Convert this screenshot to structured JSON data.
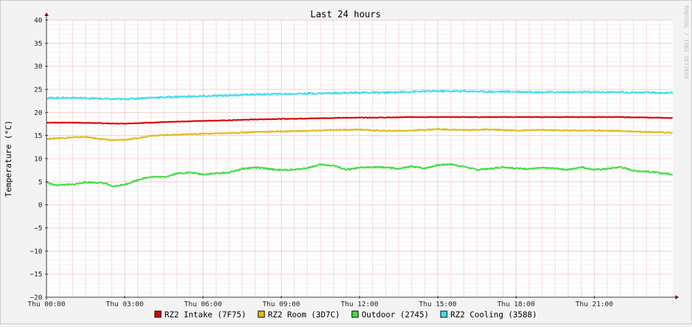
{
  "chart_data": {
    "type": "line",
    "title": "Last 24 hours",
    "ylabel": "Temperature (°C)",
    "xlabel": "",
    "watermark": "RRDTOOL / TOBI OETIKER",
    "ylim": [
      -20,
      40
    ],
    "yticks": [
      40,
      35,
      30,
      25,
      20,
      15,
      10,
      5,
      0,
      -5,
      -10,
      -15,
      -20
    ],
    "ytick_labels": [
      "40",
      "35",
      "30",
      "25",
      "20",
      "15",
      "10",
      "5",
      "0",
      "−5",
      "−10",
      "−15",
      "−20"
    ],
    "xlim_hours": [
      0,
      24
    ],
    "xticks": [
      {
        "label": "Thu 00:00",
        "hour": 0
      },
      {
        "label": "Thu 03:00",
        "hour": 3
      },
      {
        "label": "Thu 06:00",
        "hour": 6
      },
      {
        "label": "Thu 09:00",
        "hour": 9
      },
      {
        "label": "Thu 12:00",
        "hour": 12
      },
      {
        "label": "Thu 15:00",
        "hour": 15
      },
      {
        "label": "Thu 18:00",
        "hour": 18
      },
      {
        "label": "Thu 21:00",
        "hour": 21
      }
    ],
    "grid": true,
    "legend_position": "bottom",
    "x_unit": "hour",
    "series": [
      {
        "name": "RZ2 Intake (7F75)",
        "color": "#dd0000",
        "x": [
          0,
          1,
          2,
          2.5,
          3,
          4,
          5,
          6,
          7,
          8,
          9,
          10,
          11,
          12,
          13,
          14,
          15,
          16,
          17,
          18,
          19,
          20,
          21,
          22,
          23,
          24
        ],
        "y": [
          17.8,
          17.8,
          17.7,
          17.6,
          17.6,
          17.8,
          18.0,
          18.2,
          18.3,
          18.5,
          18.6,
          18.7,
          18.8,
          18.9,
          18.9,
          19.0,
          19.0,
          19.0,
          19.0,
          19.0,
          19.0,
          19.0,
          19.0,
          19.0,
          18.9,
          18.8
        ]
      },
      {
        "name": "RZ2 Room (3D7C)",
        "color": "#e6b820",
        "x": [
          0,
          1,
          1.5,
          2,
          2.5,
          3,
          3.5,
          4,
          5,
          6,
          7,
          8,
          9,
          10,
          11,
          12,
          13,
          14,
          15,
          16,
          17,
          18,
          19,
          20,
          21,
          22,
          23,
          24
        ],
        "y": [
          14.3,
          14.6,
          14.7,
          14.3,
          14.0,
          14.1,
          14.4,
          15.0,
          15.2,
          15.4,
          15.5,
          15.8,
          15.9,
          16.0,
          16.2,
          16.3,
          16.0,
          16.1,
          16.4,
          16.2,
          16.3,
          16.1,
          16.2,
          16.1,
          16.1,
          16.0,
          15.8,
          15.6
        ]
      },
      {
        "name": "Outdoor (2745)",
        "color": "#44dd44",
        "x": [
          0,
          0.3,
          1,
          1.5,
          2,
          2.3,
          2.5,
          2.8,
          3,
          3.5,
          4,
          4.5,
          5,
          5.5,
          6,
          6.5,
          7,
          7.5,
          8,
          8.5,
          9,
          9.5,
          10,
          10.5,
          11,
          11.5,
          12,
          12.5,
          13,
          13.5,
          14,
          14.5,
          15,
          15.5,
          16,
          16.5,
          17,
          17.5,
          18,
          18.5,
          19,
          19.5,
          20,
          20.5,
          21,
          21.5,
          22,
          22.5,
          23,
          23.5,
          24
        ],
        "y": [
          4.9,
          4.3,
          4.4,
          4.9,
          4.8,
          4.6,
          3.9,
          4.2,
          4.4,
          5.4,
          6.1,
          6.0,
          6.8,
          7.0,
          6.6,
          6.8,
          7.0,
          7.8,
          8.1,
          7.8,
          7.5,
          7.6,
          8.0,
          8.7,
          8.5,
          7.6,
          8.0,
          8.2,
          8.1,
          7.8,
          8.3,
          7.9,
          8.6,
          8.8,
          8.3,
          7.6,
          7.8,
          8.2,
          7.9,
          7.8,
          8.0,
          7.9,
          7.6,
          8.2,
          7.6,
          7.8,
          8.2,
          7.4,
          7.2,
          6.9,
          6.6
        ]
      },
      {
        "name": "RZ2 Cooling (3588)",
        "color": "#44ddee",
        "x": [
          0,
          1,
          2,
          2.5,
          3,
          4,
          5,
          6,
          7,
          8,
          9,
          10,
          11,
          12,
          13,
          14,
          15,
          16,
          17,
          18,
          19,
          20,
          21,
          22,
          23,
          24
        ],
        "y": [
          23.1,
          23.2,
          23.0,
          22.9,
          22.9,
          23.2,
          23.4,
          23.5,
          23.7,
          23.9,
          24.0,
          24.1,
          24.2,
          24.3,
          24.3,
          24.5,
          24.6,
          24.6,
          24.5,
          24.5,
          24.4,
          24.4,
          24.4,
          24.4,
          24.3,
          24.2
        ]
      }
    ]
  }
}
